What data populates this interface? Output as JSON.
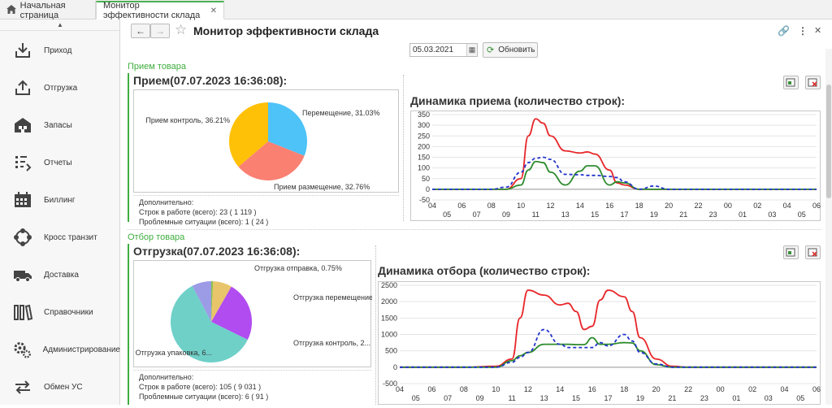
{
  "tabs": {
    "home_label": "Начальная страница",
    "active_label": "Монитор эффективности склада"
  },
  "sidebar": {
    "items": [
      {
        "label": "Приход",
        "icon": "download-icon"
      },
      {
        "label": "Отгрузка",
        "icon": "upload-icon"
      },
      {
        "label": "Запасы",
        "icon": "warehouse-icon"
      },
      {
        "label": "Отчеты",
        "icon": "reports-icon"
      },
      {
        "label": "Биллинг",
        "icon": "calendar-icon"
      },
      {
        "label": "Кросс транзит",
        "icon": "cross-transit-icon"
      },
      {
        "label": "Доставка",
        "icon": "truck-icon"
      },
      {
        "label": "Справочники",
        "icon": "books-icon"
      },
      {
        "label": "Администрирование",
        "icon": "gears-icon"
      },
      {
        "label": "Обмен УС",
        "icon": "exchange-icon"
      }
    ]
  },
  "header": {
    "title": "Монитор эффективности склада",
    "date_value": "05.03.2021",
    "refresh_label": "Обновить"
  },
  "reception": {
    "group_title": "Прием товара",
    "section_title": "Прием(07.07.2023 16:36:08):",
    "chart_title": "Динамика приема (количество строк):",
    "extra_title": "Дополнительно:",
    "extra_line1": "Строк в работе (всего): 23 ( 1 119 )",
    "extra_line2": "Проблемные ситуации (всего): 1 ( 24 )"
  },
  "picking": {
    "group_title": "Отбор товара",
    "section_title": "Отгрузка(07.07.2023 16:36:08):",
    "chart_title": "Динамика отбора (количество строк):",
    "extra_title": "Дополнительно:",
    "extra_line1": "Строк в работе (всего): 105 ( 9 031 )",
    "extra_line2": "Проблемные ситуации (всего): 6 ( 91 )"
  },
  "colors": {
    "accent_green": "#3fae3f",
    "red_series": "#e8262a",
    "green_series": "#2e8b2e",
    "blue_series": "#2233cc"
  },
  "chart_data": [
    {
      "type": "pie",
      "slices": [
        {
          "label": "Перемещение, 31.03%",
          "value": 31.03,
          "color": "#4dc3f7"
        },
        {
          "label": "Прием размещение, 32.76%",
          "value": 32.76,
          "color": "#fa8072"
        },
        {
          "label": "Прием контроль, 36.21%",
          "value": 36.21,
          "color": "#ffc107"
        }
      ]
    },
    {
      "type": "line",
      "title": "Динамика приема (количество строк):",
      "ylim": [
        -50,
        350
      ],
      "y_ticks": [
        "350",
        "300",
        "250",
        "200",
        "150",
        "100",
        "50",
        "0",
        "-50"
      ],
      "x_ticks_top": [
        "04",
        "06",
        "08",
        "10",
        "12",
        "14",
        "16",
        "18",
        "20",
        "22",
        "00",
        "02",
        "04",
        "06"
      ],
      "x_ticks_bottom": [
        "05",
        "07",
        "09",
        "11",
        "13",
        "15",
        "17",
        "19",
        "21",
        "23",
        "01",
        "03",
        "05"
      ],
      "x": [
        4,
        6,
        8,
        9,
        10,
        10.5,
        11,
        11.5,
        12,
        13,
        14,
        14.5,
        15,
        16,
        16.5,
        17,
        18,
        19,
        20,
        22,
        24,
        26,
        28,
        30
      ],
      "series": [
        {
          "color": "#e8262a",
          "style": "solid",
          "values": [
            0,
            0,
            0,
            0,
            50,
            250,
            330,
            310,
            250,
            180,
            170,
            175,
            165,
            90,
            30,
            20,
            0,
            0,
            0,
            0,
            0,
            0,
            0,
            0
          ]
        },
        {
          "color": "#2e8b2e",
          "style": "solid",
          "values": [
            0,
            0,
            0,
            0,
            20,
            90,
            130,
            125,
            80,
            20,
            85,
            110,
            110,
            20,
            35,
            30,
            0,
            0,
            0,
            0,
            0,
            0,
            0,
            0
          ]
        },
        {
          "color": "#2233cc",
          "style": "dashed",
          "values": [
            0,
            0,
            0,
            10,
            80,
            125,
            145,
            150,
            140,
            70,
            68,
            65,
            65,
            60,
            55,
            35,
            0,
            15,
            0,
            0,
            0,
            0,
            0,
            0
          ]
        }
      ]
    },
    {
      "type": "pie",
      "slices": [
        {
          "label": "Отгрузка отправка, 0.75%",
          "value": 0.75,
          "color": "#8bc34a"
        },
        {
          "label": "Отгрузка перемещение, ...",
          "value": 7.5,
          "color": "#e8c46a"
        },
        {
          "label": "Отгрузка контроль, 2...",
          "value": 24,
          "color": "#b04cf0"
        },
        {
          "label": "Отгрузка упаковка, 6...",
          "value": 60,
          "color": "#6fd0c8"
        },
        {
          "label": "",
          "value": 7.75,
          "color": "#9b9be6"
        }
      ]
    },
    {
      "type": "line",
      "title": "Динамика отбора (количество строк):",
      "ylim": [
        -500,
        2500
      ],
      "y_ticks": [
        "2500",
        "2000",
        "1500",
        "1000",
        "500",
        "0",
        "-500"
      ],
      "x_ticks_top": [
        "04",
        "06",
        "08",
        "10",
        "12",
        "14",
        "16",
        "18",
        "20",
        "22",
        "00",
        "02",
        "04",
        "06"
      ],
      "x_ticks_bottom": [
        "05",
        "07",
        "09",
        "11",
        "13",
        "15",
        "17",
        "19",
        "21",
        "23",
        "01",
        "03",
        "05"
      ],
      "x": [
        4,
        6,
        8,
        10,
        11,
        11.5,
        12,
        13,
        14,
        14.5,
        15,
        15.5,
        16,
        16.5,
        17,
        18,
        18.5,
        19,
        20,
        21,
        22,
        24,
        26,
        28,
        30
      ],
      "series": [
        {
          "color": "#e8262a",
          "style": "solid",
          "values": [
            0,
            0,
            0,
            30,
            250,
            1500,
            2350,
            2200,
            1900,
            1950,
            1700,
            1150,
            1250,
            2050,
            2350,
            2150,
            1700,
            900,
            250,
            30,
            0,
            0,
            0,
            0,
            0
          ]
        },
        {
          "color": "#2e8b2e",
          "style": "solid",
          "values": [
            0,
            0,
            0,
            0,
            200,
            350,
            450,
            700,
            700,
            700,
            690,
            690,
            900,
            700,
            700,
            750,
            740,
            500,
            80,
            0,
            0,
            0,
            0,
            0,
            0
          ]
        },
        {
          "color": "#2233cc",
          "style": "dashed",
          "values": [
            0,
            0,
            0,
            0,
            150,
            300,
            450,
            1150,
            700,
            600,
            600,
            600,
            600,
            750,
            650,
            1000,
            800,
            450,
            100,
            0,
            0,
            0,
            0,
            0,
            0
          ]
        }
      ]
    }
  ]
}
